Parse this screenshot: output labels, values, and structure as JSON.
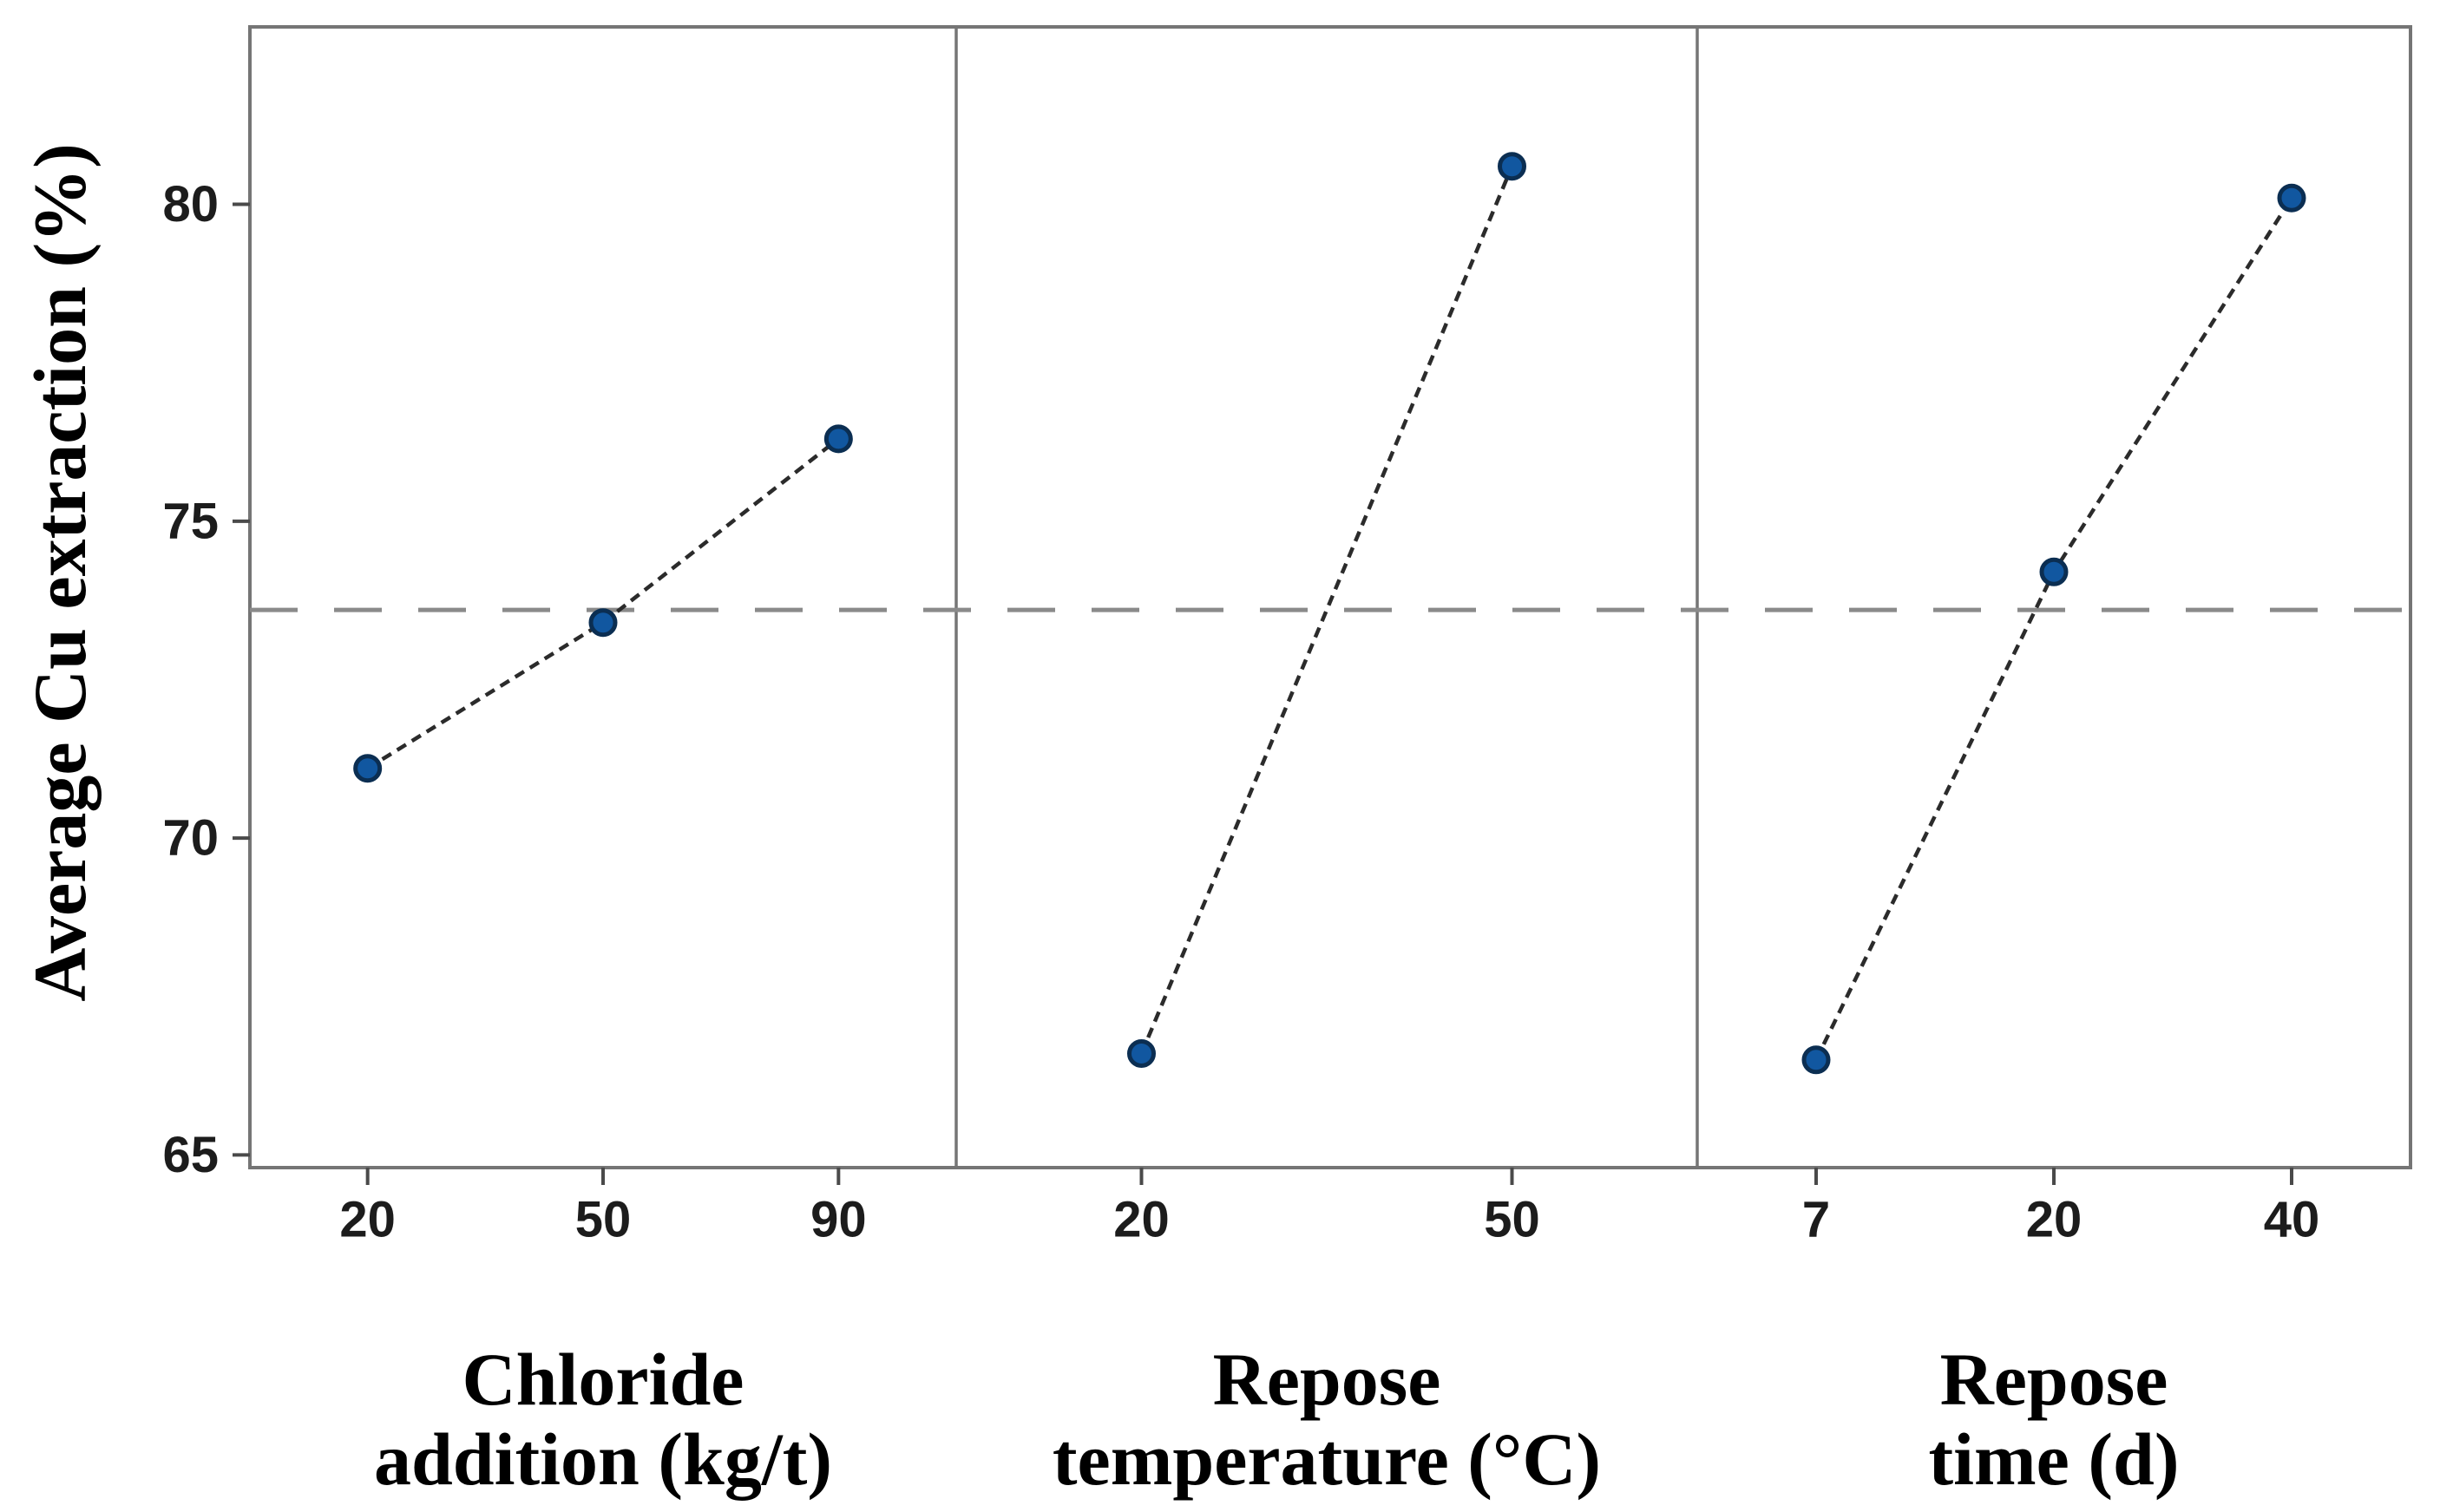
{
  "chart_data": {
    "type": "line",
    "subtype": "main-effects-plot",
    "title": "",
    "ylabel": "Average Cu extraction (%)",
    "ylim": [
      64.8,
      82.8
    ],
    "yticks": [
      80,
      75,
      70,
      65
    ],
    "grid": false,
    "legend": false,
    "mean_line": 73.6,
    "mean_line_style": "dashed",
    "panels": [
      {
        "xlabel_lines": [
          "Chloride",
          "addition (kg/t)"
        ],
        "categories": [
          "20",
          "50",
          "90"
        ],
        "values": [
          71.1,
          73.4,
          76.3
        ]
      },
      {
        "xlabel_lines": [
          "Repose",
          "temperature (°C)"
        ],
        "categories": [
          "20",
          "50"
        ],
        "values": [
          66.6,
          80.6
        ]
      },
      {
        "xlabel_lines": [
          "Repose",
          "time (d)"
        ],
        "categories": [
          "7",
          "20",
          "40"
        ],
        "values": [
          66.5,
          74.2,
          80.1
        ]
      }
    ]
  },
  "colors": {
    "marker_fill": "#1157a0",
    "marker_stroke": "#0b2e52",
    "segment_line": "#2b2b2b",
    "mean_line": "#8a8a8a",
    "frame": "#757575",
    "tick": "#4a4a4a",
    "label_text": "#1c1c1c",
    "title_text": "#000000",
    "background": "#ffffff"
  }
}
